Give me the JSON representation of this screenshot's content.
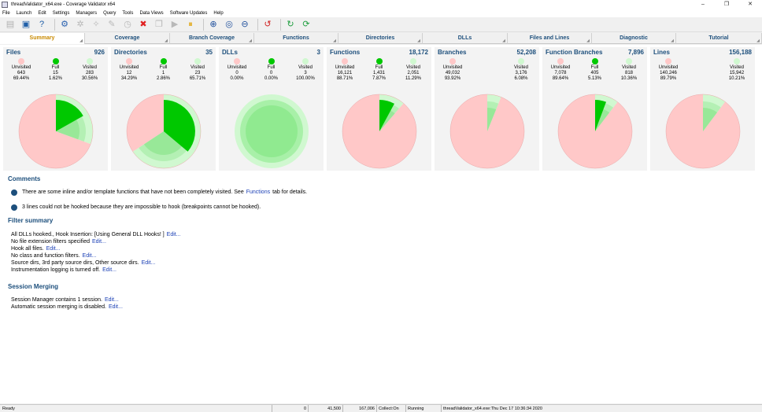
{
  "window": {
    "title": "threadValidator_x64.exe - Coverage Validator x64",
    "minimize": "–",
    "restore": "❐",
    "close": "✕"
  },
  "menu": [
    "File",
    "Launch",
    "Edit",
    "Settings",
    "Managers",
    "Query",
    "Tools",
    "Data Views",
    "Software Updates",
    "Help"
  ],
  "toolbar": [
    {
      "name": "new-session-icon",
      "glyph": "▤",
      "color": "#b0b0b0",
      "disabled": true
    },
    {
      "name": "save-icon",
      "glyph": "▣",
      "color": "#1f5fa8",
      "disabled": false
    },
    {
      "name": "help-icon",
      "glyph": "?",
      "color": "#1f5fa8",
      "disabled": false
    },
    {
      "sep": true
    },
    {
      "name": "settings-gear-icon",
      "glyph": "⚙",
      "color": "#2a62b0",
      "disabled": false
    },
    {
      "name": "wizard-icon",
      "glyph": "✲",
      "color": "#b8b8b8",
      "disabled": true
    },
    {
      "name": "hook-icon",
      "glyph": "✧",
      "color": "#b8b8b8",
      "disabled": true
    },
    {
      "name": "pen-icon",
      "glyph": "✎",
      "color": "#b8b8b8",
      "disabled": true
    },
    {
      "name": "timer-icon",
      "glyph": "◷",
      "color": "#b8b8b8",
      "disabled": true
    },
    {
      "name": "stop-icon",
      "glyph": "✖",
      "color": "#e02020",
      "disabled": false
    },
    {
      "name": "clipboard-icon",
      "glyph": "❐",
      "color": "#b8b8b8",
      "disabled": true
    },
    {
      "name": "play-icon",
      "glyph": "▶",
      "color": "#b8b8b8",
      "disabled": true
    },
    {
      "name": "pause-icon",
      "glyph": "⏸",
      "color": "#e0a000",
      "disabled": false
    },
    {
      "sep": true
    },
    {
      "name": "zoom-in-icon",
      "glyph": "⊕",
      "color": "#1f4f9c",
      "disabled": false
    },
    {
      "name": "zoom-icon",
      "glyph": "◎",
      "color": "#1f4f9c",
      "disabled": false
    },
    {
      "name": "zoom-out-icon",
      "glyph": "⊖",
      "color": "#1f4f9c",
      "disabled": false
    },
    {
      "sep": true
    },
    {
      "name": "undo-icon",
      "glyph": "↺",
      "color": "#d02020",
      "disabled": false
    },
    {
      "sep": true
    },
    {
      "name": "refresh-icon",
      "glyph": "↻",
      "color": "#1e9e3e",
      "disabled": false
    },
    {
      "name": "refresh-all-icon",
      "glyph": "⟳",
      "color": "#1e9e3e",
      "disabled": false
    }
  ],
  "tabs": [
    {
      "label": "Summary",
      "active": true
    },
    {
      "label": "Coverage",
      "active": false
    },
    {
      "label": "Branch Coverage",
      "active": false
    },
    {
      "label": "Functions",
      "active": false
    },
    {
      "label": "Directories",
      "active": false
    },
    {
      "label": "DLLs",
      "active": false
    },
    {
      "label": "Files and Lines",
      "active": false
    },
    {
      "label": "Diagnostic",
      "active": false
    },
    {
      "label": "Tutorial",
      "active": false
    }
  ],
  "tab_corner": "◢",
  "colors": {
    "unvisited": "#ffc8c8",
    "full": "#00c800",
    "visited": "#d0f8d0",
    "title_blue": "#1d4f7c",
    "active_tab": "#c98a00",
    "link": "#1a3fb5"
  },
  "stat_labels": {
    "unvisited": "Unvisited",
    "full": "Full",
    "visited": "Visited"
  },
  "cards": [
    {
      "title": "Files",
      "total": "926",
      "unvisited": {
        "count": "643",
        "pct": "69.44%"
      },
      "full": {
        "count": "15",
        "pct": "1.62%"
      },
      "visited": {
        "count": "283",
        "pct": "30.56%"
      }
    },
    {
      "title": "Directories",
      "total": "35",
      "unvisited": {
        "count": "12",
        "pct": "34.29%"
      },
      "full": {
        "count": "1",
        "pct": "2.86%"
      },
      "visited": {
        "count": "23",
        "pct": "65.71%"
      }
    },
    {
      "title": "DLLs",
      "total": "3",
      "unvisited": {
        "count": "0",
        "pct": "0.00%"
      },
      "full": {
        "count": "0",
        "pct": "0.00%"
      },
      "visited": {
        "count": "3",
        "pct": "100.00%"
      }
    },
    {
      "title": "Functions",
      "total": "18,172",
      "unvisited": {
        "count": "16,121",
        "pct": "88.71%"
      },
      "full": {
        "count": "1,431",
        "pct": "7.87%"
      },
      "visited": {
        "count": "2,051",
        "pct": "11.29%"
      }
    },
    {
      "title": "Branches",
      "total": "52,208",
      "unvisited": {
        "count": "49,032",
        "pct": "93.92%"
      },
      "full": null,
      "visited": {
        "count": "3,176",
        "pct": "6.08%"
      }
    },
    {
      "title": "Function Branches",
      "total": "7,896",
      "unvisited": {
        "count": "7,078",
        "pct": "89.64%"
      },
      "full": {
        "count": "405",
        "pct": "5.13%"
      },
      "visited": {
        "count": "818",
        "pct": "10.36%"
      }
    },
    {
      "title": "Lines",
      "total": "156,188",
      "unvisited": {
        "count": "140,246",
        "pct": "89.79%"
      },
      "full": null,
      "visited": {
        "count": "15,942",
        "pct": "10.21%"
      }
    }
  ],
  "chart_data": [
    {
      "type": "pie",
      "title": "Files",
      "categories": [
        "Unvisited",
        "Full",
        "Visited"
      ],
      "values": [
        69.44,
        1.62,
        30.56
      ]
    },
    {
      "type": "pie",
      "title": "Directories",
      "categories": [
        "Unvisited",
        "Full",
        "Visited"
      ],
      "values": [
        34.29,
        2.86,
        65.71
      ]
    },
    {
      "type": "pie",
      "title": "DLLs",
      "categories": [
        "Unvisited",
        "Full",
        "Visited"
      ],
      "values": [
        0.0,
        0.0,
        100.0
      ]
    },
    {
      "type": "pie",
      "title": "Functions",
      "categories": [
        "Unvisited",
        "Full",
        "Visited"
      ],
      "values": [
        88.71,
        7.87,
        11.29
      ]
    },
    {
      "type": "pie",
      "title": "Branches",
      "categories": [
        "Unvisited",
        "Visited"
      ],
      "values": [
        93.92,
        6.08
      ]
    },
    {
      "type": "pie",
      "title": "Function Branches",
      "categories": [
        "Unvisited",
        "Full",
        "Visited"
      ],
      "values": [
        89.64,
        5.13,
        10.36
      ]
    },
    {
      "type": "pie",
      "title": "Lines",
      "categories": [
        "Unvisited",
        "Visited"
      ],
      "values": [
        89.79,
        10.21
      ]
    }
  ],
  "comments": {
    "title": "Comments",
    "items": [
      {
        "text": "There are some inline and/or template functions that have not been completely visited. See",
        "link": "Functions",
        "suffix": "tab for details."
      },
      {
        "text": "3 lines could not be hooked because they are impossible to hook (breakpoints cannot be hooked).",
        "link": "",
        "suffix": ""
      }
    ]
  },
  "filter_summary": {
    "title": "Filter summary",
    "lines": [
      {
        "text": "All DLLs hooked., Hook Insertion: [Using General DLL Hooks! ]",
        "link": "Edit..."
      },
      {
        "text": "No file extension filters specified",
        "link": "Edit..."
      },
      {
        "text": "Hook all files.",
        "link": "Edit..."
      },
      {
        "text": "No class and function filters.",
        "link": "Edit..."
      },
      {
        "text": "Source dirs, 3rd party source dirs, Other source dirs.",
        "link": "Edit..."
      },
      {
        "text": "Instrumentation logging is turned off.",
        "link": "Edit..."
      }
    ]
  },
  "session_merging": {
    "title": "Session Merging",
    "lines": [
      {
        "text": "Session Manager contains 1 session.",
        "link": "Edit..."
      },
      {
        "text": "Automatic session merging is disabled.",
        "link": "Edit..."
      }
    ]
  },
  "statusbar": {
    "ready": "Ready",
    "v1": "0",
    "v2": "41,500",
    "v3": "167,006",
    "collect": "Collect:On",
    "state": "Running",
    "process": "threadValidator_x64.exe:Thu Dec 17 10:36:34 2020"
  }
}
